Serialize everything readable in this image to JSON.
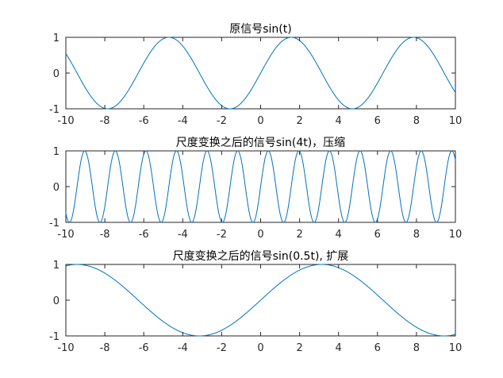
{
  "colors": {
    "line": "#0072BD",
    "axes": "#262626"
  },
  "chart_data": [
    {
      "type": "line",
      "title": "原信号sin(t)",
      "xlim": [
        -10,
        10
      ],
      "ylim": [
        -1,
        1
      ],
      "xticks": [
        "-10",
        "-8",
        "-6",
        "-4",
        "-2",
        "0",
        "2",
        "4",
        "6",
        "8",
        "10"
      ],
      "yticks": [
        "1",
        "0",
        "-1"
      ],
      "series": [
        {
          "function": "sin(t)",
          "freq": 1
        }
      ]
    },
    {
      "type": "line",
      "title": "尺度变换之后的信号sin(4t)，压缩",
      "xlim": [
        -10,
        10
      ],
      "ylim": [
        -1,
        1
      ],
      "xticks": [
        "-10",
        "-8",
        "-6",
        "-4",
        "-2",
        "0",
        "2",
        "4",
        "6",
        "8",
        "10"
      ],
      "yticks": [
        "1",
        "0",
        "-1"
      ],
      "series": [
        {
          "function": "sin(4t)",
          "freq": 4
        }
      ]
    },
    {
      "type": "line",
      "title": "尺度变换之后的信号sin(0.5t), 扩展",
      "xlim": [
        -10,
        10
      ],
      "ylim": [
        -1,
        1
      ],
      "xticks": [
        "-10",
        "-8",
        "-6",
        "-4",
        "-2",
        "0",
        "2",
        "4",
        "6",
        "8",
        "10"
      ],
      "yticks": [
        "1",
        "0",
        "-1"
      ],
      "series": [
        {
          "function": "sin(0.5t)",
          "freq": 0.5
        }
      ]
    }
  ]
}
